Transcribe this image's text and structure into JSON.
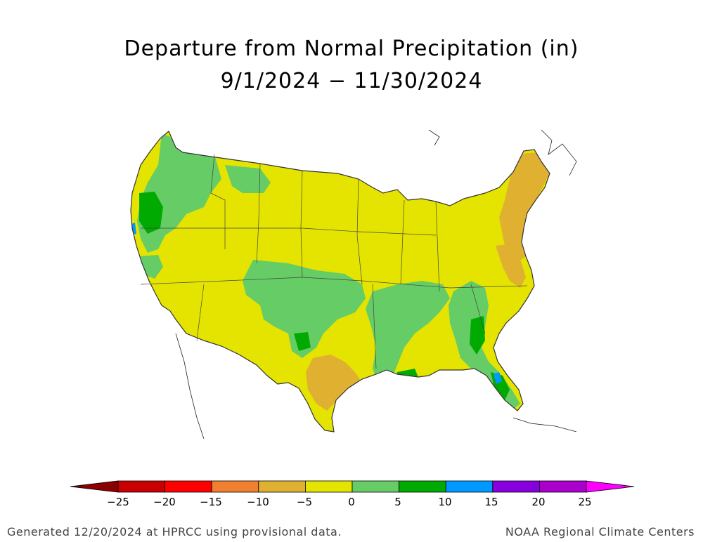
{
  "title": "Departure from Normal Precipitation (in)",
  "subtitle": "9/1/2024 − 11/30/2024",
  "colorbar": {
    "tick_labels": [
      "−25",
      "−20",
      "−15",
      "−10",
      "−5",
      "0",
      "5",
      "10",
      "15",
      "20",
      "25"
    ],
    "bins": [
      {
        "range": "< -25",
        "color": "#8b0000"
      },
      {
        "range": "-25 to -20",
        "color": "#c80000"
      },
      {
        "range": "-20 to -15",
        "color": "#ff0000"
      },
      {
        "range": "-15 to -10",
        "color": "#f08030"
      },
      {
        "range": "-10 to -5",
        "color": "#e0b030"
      },
      {
        "range": "-5 to 0",
        "color": "#e4e400"
      },
      {
        "range": "0 to 5",
        "color": "#66cc66"
      },
      {
        "range": "5 to 10",
        "color": "#00aa00"
      },
      {
        "range": "10 to 15",
        "color": "#0099ff"
      },
      {
        "range": "15 to 20",
        "color": "#8800dd"
      },
      {
        "range": "20 to 25",
        "color": "#aa00cc"
      },
      {
        "range": "> 25",
        "color": "#ff00ff"
      }
    ]
  },
  "map": {
    "region": "Contiguous United States",
    "dominant_category": "-5 to 0",
    "colors": {
      "dry_base": "#e4e400",
      "moderately_dry": "#e0b030",
      "slightly_wet": "#66cc66",
      "wet": "#00aa00",
      "very_wet": "#0099ff",
      "extremely_wet": "#8800dd"
    }
  },
  "footer": {
    "left": "Generated 12/20/2024 at HPRCC using provisional data.",
    "right": "NOAA Regional Climate Centers"
  }
}
